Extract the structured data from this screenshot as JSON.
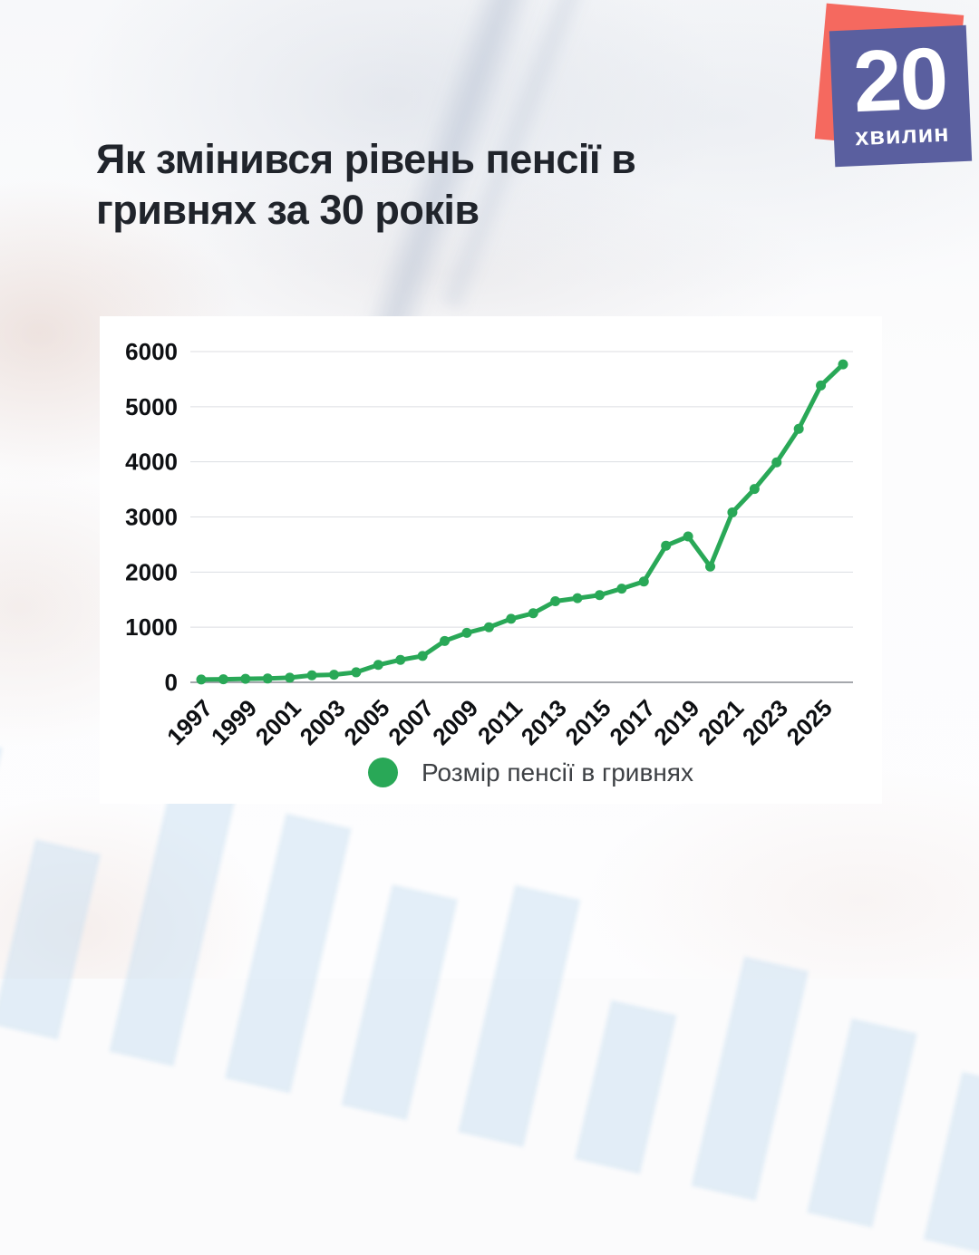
{
  "title": {
    "line1": "Як змінився рівень пенсії в",
    "line2": "гривнях за 30 років"
  },
  "logo": {
    "number": "20",
    "word": "хвилин",
    "front_color": "#5a5f9f",
    "back_color": "#f5695f"
  },
  "chart_data": {
    "type": "line",
    "title": "Як змінився рівень пенсії в гривнях за 30 років",
    "x": [
      1997,
      1998,
      1999,
      2000,
      2001,
      2002,
      2003,
      2004,
      2005,
      2006,
      2007,
      2008,
      2009,
      2010,
      2011,
      2012,
      2013,
      2014,
      2015,
      2016,
      2017,
      2018,
      2019,
      2020,
      2021,
      2022,
      2023,
      2024,
      2025,
      2026
    ],
    "series": [
      {
        "name": "Розмір пенсії в гривнях",
        "color": "#29a857",
        "values": [
          52,
          55,
          64,
          69,
          85,
          127,
          137,
          182,
          316,
          407,
          478,
          751,
          898,
          999,
          1152,
          1253,
          1471,
          1526,
          1582,
          1700,
          1828,
          2479,
          2646,
          2100,
          3083,
          3508,
          3991,
          4599,
          5385,
          5768
        ]
      }
    ],
    "xlabel": "",
    "ylabel": "",
    "ylim": [
      0,
      6000
    ],
    "yticks": [
      0,
      1000,
      2000,
      3000,
      4000,
      5000,
      6000
    ],
    "xticks": [
      1997,
      1999,
      2001,
      2003,
      2005,
      2007,
      2009,
      2011,
      2013,
      2015,
      2017,
      2019,
      2021,
      2023,
      2025
    ],
    "grid": true,
    "legend": {
      "label": "Розмір пенсії в гривнях",
      "position": "bottom"
    }
  }
}
